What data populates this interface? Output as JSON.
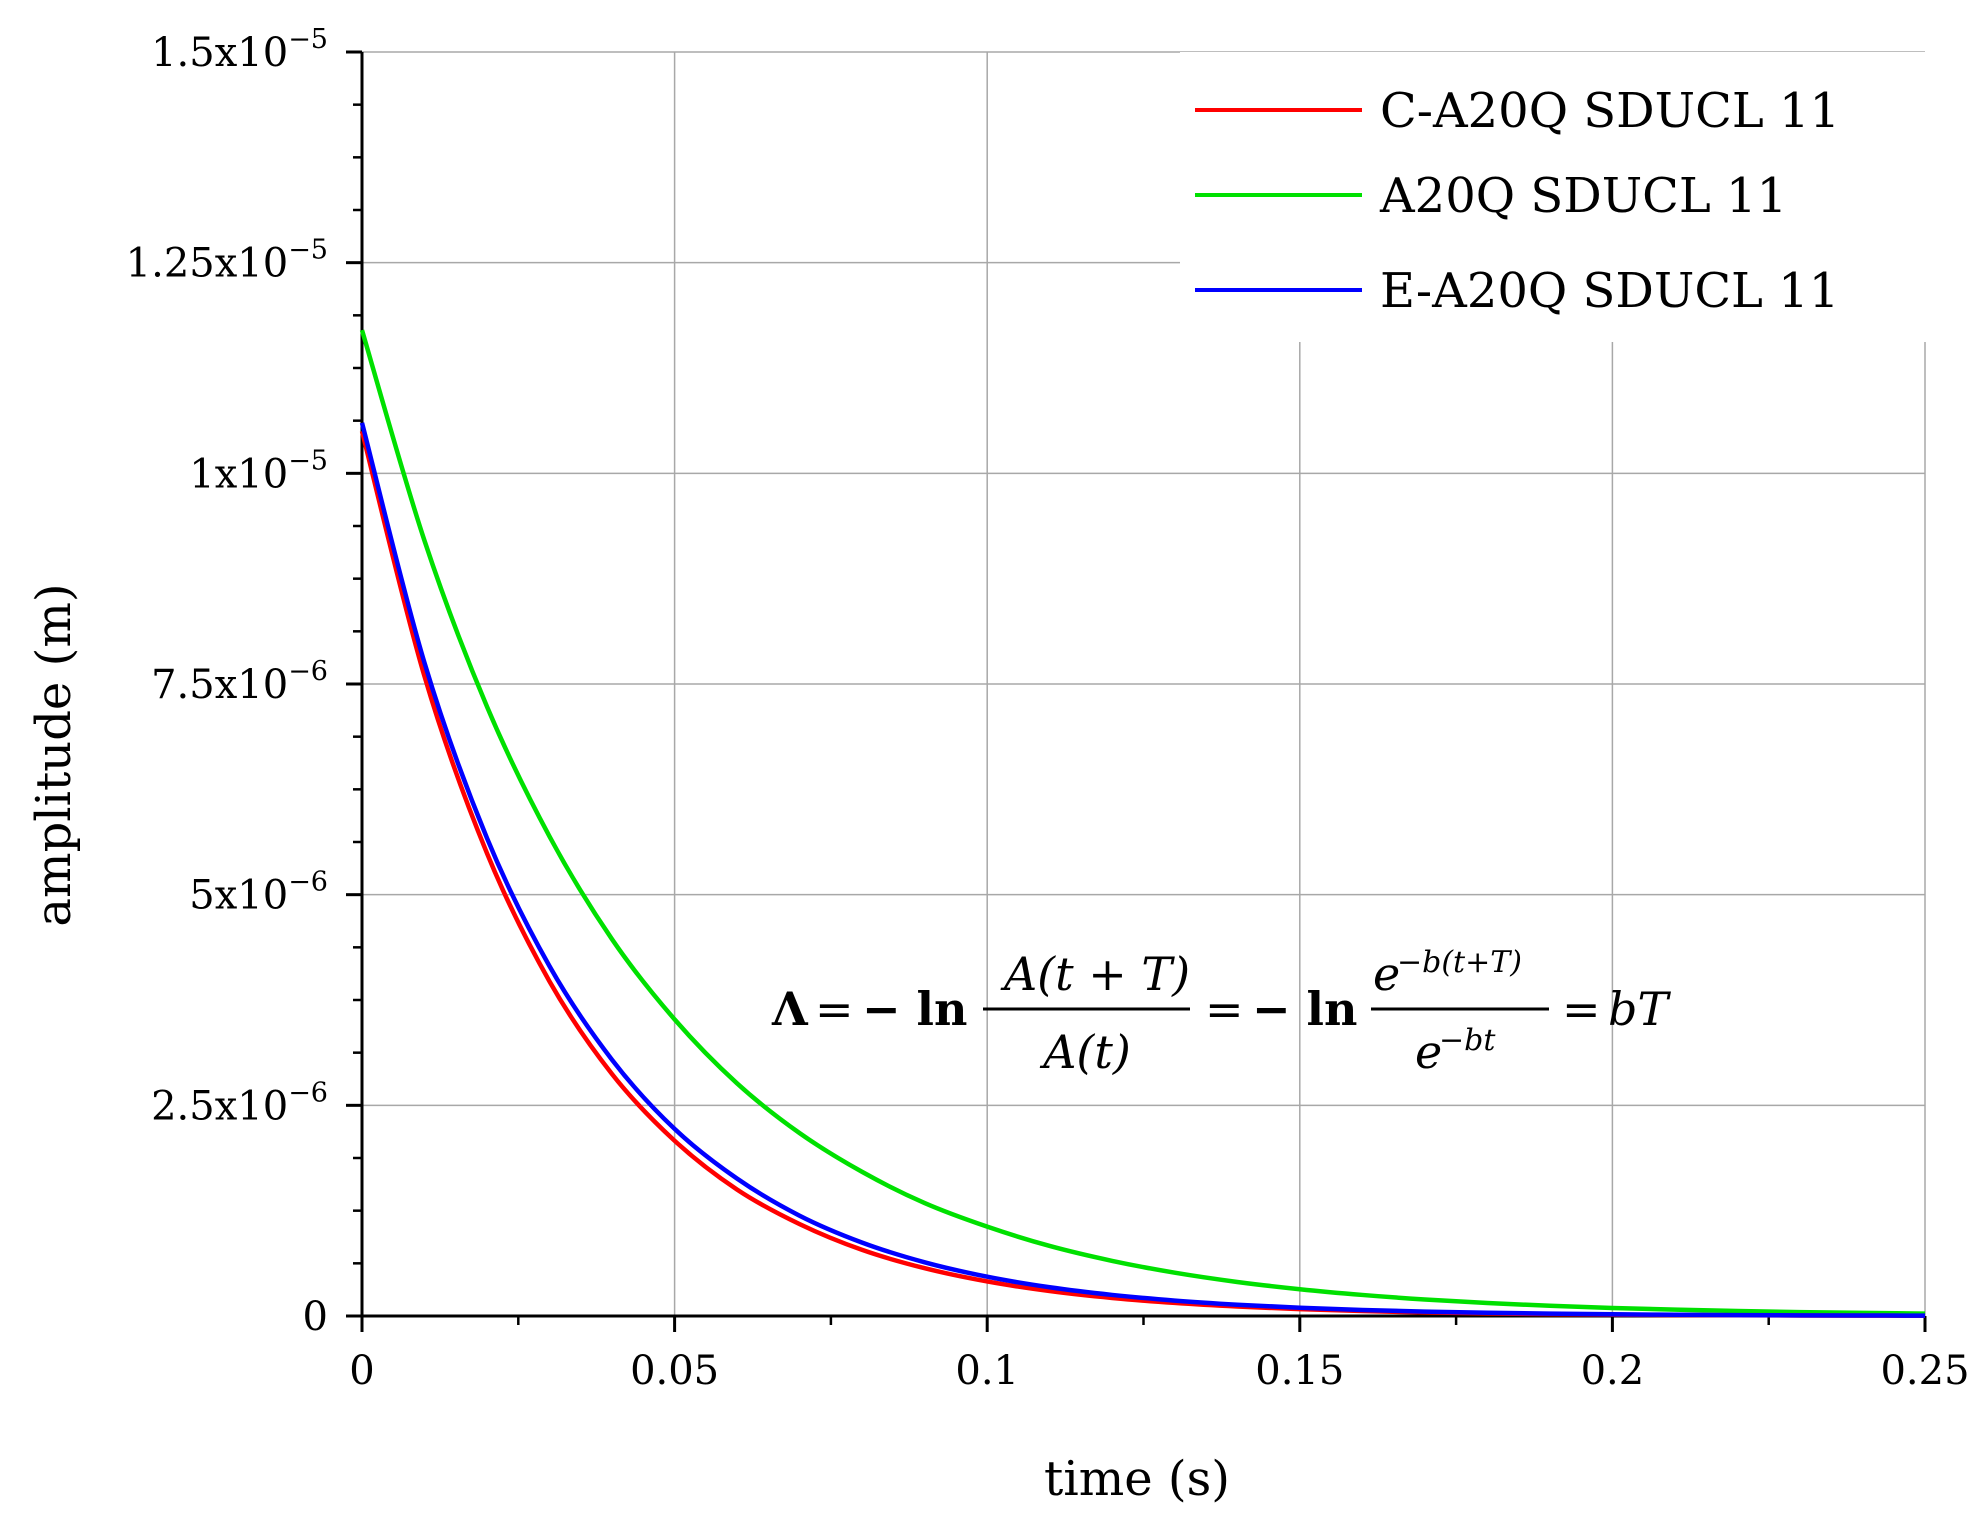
{
  "chart_data": {
    "type": "line",
    "xlabel": "time (s)",
    "ylabel": "amplitude (m)",
    "xlim": [
      0,
      0.25
    ],
    "ylim": [
      0,
      1.5e-05
    ],
    "grid": true,
    "legend_position": "top-right",
    "x_ticks": [
      {
        "value": 0,
        "label": "0"
      },
      {
        "value": 0.05,
        "label": "0.05"
      },
      {
        "value": 0.1,
        "label": "0.1"
      },
      {
        "value": 0.15,
        "label": "0.15"
      },
      {
        "value": 0.2,
        "label": "0.2"
      },
      {
        "value": 0.25,
        "label": "0.25"
      }
    ],
    "y_ticks": [
      {
        "value": 0,
        "mantissa": "0",
        "exponent": ""
      },
      {
        "value": 2.5e-06,
        "mantissa": "2.5x10",
        "exponent": "−6"
      },
      {
        "value": 5e-06,
        "mantissa": "5x10",
        "exponent": "−6"
      },
      {
        "value": 7.5e-06,
        "mantissa": "7.5x10",
        "exponent": "−6"
      },
      {
        "value": 1e-05,
        "mantissa": "1x10",
        "exponent": "−5"
      },
      {
        "value": 1.25e-05,
        "mantissa": "1.25x10",
        "exponent": "−5"
      },
      {
        "value": 1.5e-05,
        "mantissa": "1.5x10",
        "exponent": "−5"
      }
    ],
    "x": [
      0,
      0.01,
      0.02,
      0.03,
      0.04,
      0.05,
      0.06,
      0.07,
      0.08,
      0.09,
      0.1,
      0.11,
      0.12,
      0.13,
      0.14,
      0.15,
      0.16,
      0.17,
      0.18,
      0.19,
      0.2,
      0.21,
      0.22,
      0.23,
      0.24,
      0.25
    ],
    "series": [
      {
        "name": "C-A20Q SDUCL 11",
        "color": "#ff0000",
        "values": [
          1.05e-05,
          7.59e-06,
          5.49e-06,
          3.97e-06,
          2.87e-06,
          2.08e-06,
          1.5e-06,
          1.09e-06,
          7.84e-07,
          5.67e-07,
          4.1e-07,
          2.96e-07,
          2.14e-07,
          1.55e-07,
          1.12e-07,
          8.1e-08,
          5.86e-08,
          4.24e-08,
          3.06e-08,
          2.21e-08,
          1.6e-08,
          1.16e-08,
          8.37e-09,
          6.05e-09,
          4.38e-09,
          3.16e-09
        ]
      },
      {
        "name": "A20Q SDUCL 11",
        "color": "#00e000",
        "values": [
          1.17e-05,
          9.2e-06,
          7.23e-06,
          5.69e-06,
          4.47e-06,
          3.52e-06,
          2.76e-06,
          2.17e-06,
          1.71e-06,
          1.34e-06,
          1.06e-06,
          8.31e-07,
          6.54e-07,
          5.14e-07,
          4.04e-07,
          3.18e-07,
          2.5e-07,
          1.96e-07,
          1.54e-07,
          1.21e-07,
          9.55e-08,
          7.51e-08,
          5.9e-08,
          4.64e-08,
          3.65e-08,
          2.87e-08
        ]
      },
      {
        "name": "E-A20Q SDUCL 11",
        "color": "#0000ff",
        "values": [
          1.06e-05,
          7.75e-06,
          5.67e-06,
          4.15e-06,
          3.04e-06,
          2.22e-06,
          1.63e-06,
          1.19e-06,
          8.71e-07,
          6.37e-07,
          4.66e-07,
          3.41e-07,
          2.5e-07,
          1.83e-07,
          1.34e-07,
          9.77e-08,
          7.15e-08,
          5.23e-08,
          3.83e-08,
          2.8e-08,
          2.05e-08,
          1.5e-08,
          1.1e-08,
          8.03e-09,
          5.88e-09,
          4.3e-09
        ]
      }
    ],
    "annotation": {
      "lhs": "Λ",
      "eq": "=",
      "neg_ln": "− ln",
      "frac1_num": "A(t + T)",
      "frac1_den": "A(t)",
      "frac2_num_base": "e",
      "frac2_num_exp": "−b(t+T)",
      "frac2_den_base": "e",
      "frac2_den_exp": "−bt",
      "rhs": "bT"
    }
  }
}
